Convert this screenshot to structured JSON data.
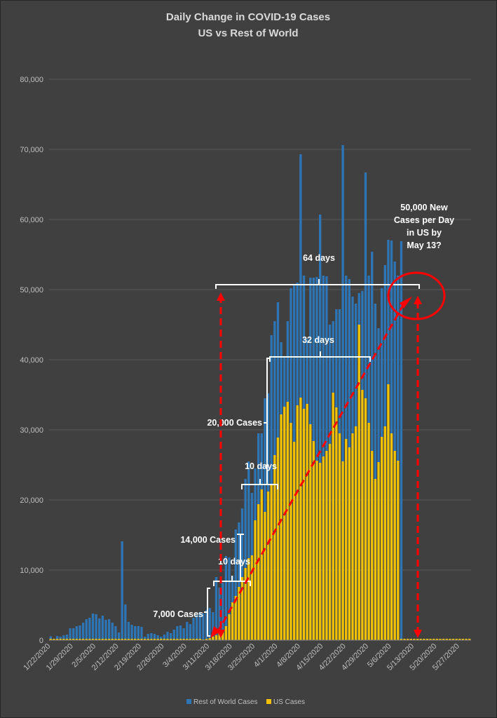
{
  "chart_data": {
    "type": "bar",
    "title": "Daily Change in COVID-19 Cases",
    "subtitle": "US vs Rest of World",
    "xlabel": "",
    "ylabel": "",
    "ylim": [
      0,
      80000
    ],
    "y_ticks": [
      "0",
      "10,000",
      "20,000",
      "30,000",
      "40,000",
      "50,000",
      "60,000",
      "70,000",
      "80,000"
    ],
    "x_tick_labels": [
      "1/22/2020",
      "1/29/2020",
      "2/5/2020",
      "2/12/2020",
      "2/19/2020",
      "2/26/2020",
      "3/4/2020",
      "3/11/2020",
      "3/18/2020",
      "3/25/2020",
      "4/1/2020",
      "4/8/2020",
      "4/15/2020",
      "4/22/2020",
      "4/29/2020",
      "5/6/2020",
      "5/13/2020",
      "5/20/2020",
      "5/27/2020"
    ],
    "num_days": 130,
    "first_date": "1/22/2020",
    "legend_position": "bottom",
    "series": [
      {
        "name": "Rest of World Cases",
        "color": "#2e75b6",
        "values": [
          550,
          100,
          600,
          500,
          700,
          800,
          1700,
          1700,
          2000,
          2100,
          2500,
          3000,
          3200,
          3800,
          3700,
          3100,
          3500,
          2900,
          3000,
          2500,
          2000,
          1100,
          14100,
          5100,
          2600,
          2200,
          2000,
          2000,
          1900,
          500,
          900,
          1000,
          900,
          700,
          500,
          800,
          1200,
          1000,
          1500,
          2000,
          2100,
          1700,
          2600,
          2300,
          3200,
          3600,
          4000,
          3800,
          4300,
          4600,
          4000,
          9000,
          7500,
          8200,
          12000,
          11800,
          9200,
          15800,
          16800,
          18800,
          23000,
          25500,
          21000,
          24500,
          29500,
          29500,
          34500,
          35200,
          43500,
          45500,
          48200,
          42500,
          40500,
          45500,
          50200,
          50600,
          51000,
          69300,
          52000,
          43000,
          51700,
          51700,
          51800,
          60700,
          52000,
          51900,
          45000,
          45500,
          47200,
          47200,
          70600,
          52000,
          51500,
          49000,
          48000,
          49500,
          49800,
          66700,
          52000,
          55400,
          48000,
          44500,
          50200,
          53500,
          57100,
          57000,
          54000,
          52000,
          56900,
          0,
          0,
          0,
          0,
          0,
          0,
          0,
          0,
          0,
          0,
          0,
          0,
          0,
          0,
          0,
          0,
          0,
          0,
          0,
          0,
          0
        ]
      },
      {
        "name": "US Cases",
        "color": "#f2c200",
        "values": [
          0,
          0,
          0,
          0,
          0,
          0,
          0,
          0,
          0,
          0,
          0,
          0,
          0,
          0,
          0,
          0,
          0,
          0,
          0,
          0,
          0,
          0,
          0,
          0,
          0,
          0,
          0,
          0,
          0,
          0,
          0,
          0,
          0,
          0,
          0,
          0,
          0,
          0,
          0,
          0,
          0,
          0,
          0,
          0,
          0,
          0,
          0,
          100,
          200,
          300,
          500,
          700,
          1000,
          1300,
          2000,
          3700,
          5400,
          6300,
          7600,
          9000,
          10300,
          11700,
          12100,
          17100,
          19400,
          21500,
          18300,
          21200,
          22200,
          26400,
          28900,
          32200,
          33300,
          34000,
          31000,
          28300,
          33500,
          34600,
          33000,
          33700,
          30800,
          28400,
          25600,
          25300,
          26200,
          27000,
          28000,
          35300,
          33200,
          29500,
          25500,
          28700,
          27500,
          29500,
          30500,
          45000,
          35700,
          34500,
          31000,
          27000,
          23000,
          25400,
          29000,
          30500,
          36500,
          29500,
          27000,
          25600,
          0,
          0,
          0,
          0,
          0,
          0,
          0,
          0,
          0,
          0,
          0,
          0,
          0,
          0,
          0,
          0,
          0,
          0,
          0,
          0,
          0
        ]
      }
    ],
    "annotations": {
      "label_7000": "7,000 Cases",
      "label_14000": "14,000 Cases",
      "label_20000": "20,000 Cases",
      "label_10days_a": "10 days",
      "label_10days_b": "10 days",
      "label_32days": "32 days",
      "label_64days": "64 days",
      "callout_line1": "50,000 New",
      "callout_line2": "Cases per Day",
      "callout_line3": "in US by",
      "callout_line4": "May 13?"
    },
    "colors": {
      "background": "#404040",
      "gridline": "#595959",
      "annotation_red": "#ff0000",
      "annotation_white": "#ffffff"
    }
  }
}
